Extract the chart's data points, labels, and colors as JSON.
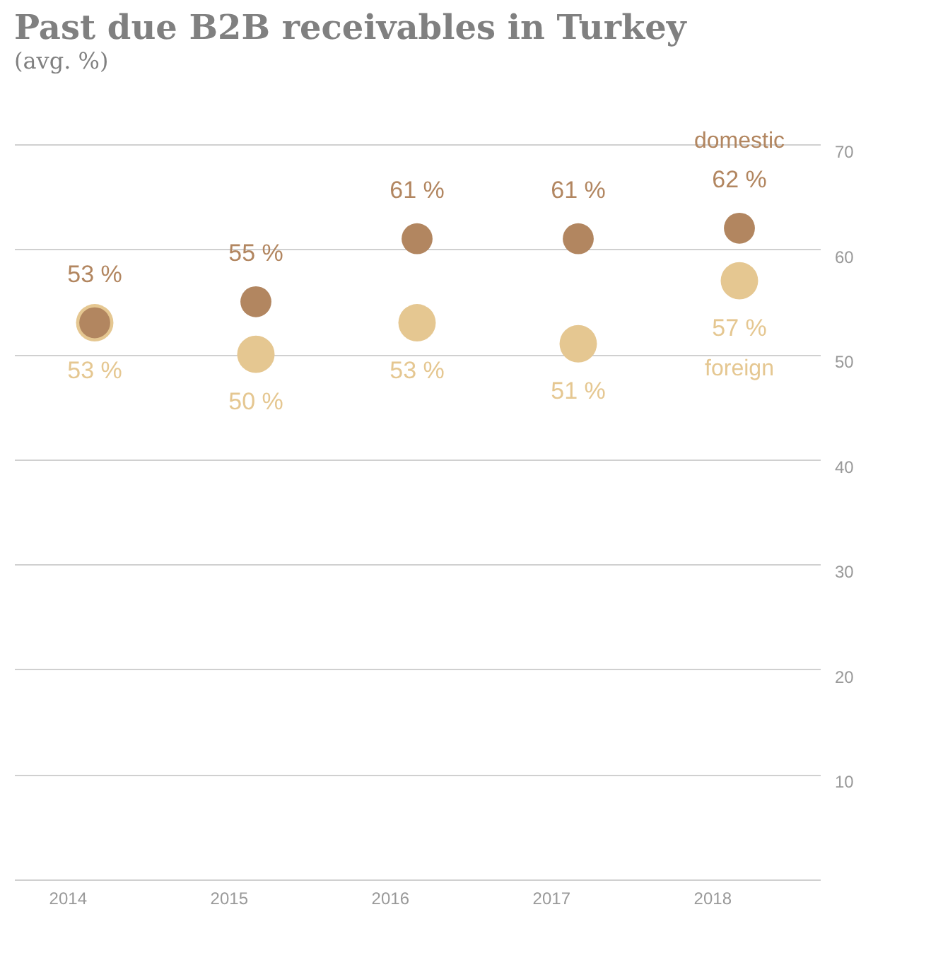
{
  "chart_data": {
    "type": "scatter",
    "title": "Past due B2B receivables in Turkey",
    "subtitle": "(avg. %)",
    "categories": [
      "2014",
      "2015",
      "2016",
      "2017",
      "2018"
    ],
    "series": [
      {
        "name": "domestic",
        "color": "#b28660",
        "values": [
          53,
          55,
          61,
          61,
          62
        ],
        "value_labels": [
          "53 %",
          "55 %",
          "61 %",
          "61 %",
          "62 %"
        ]
      },
      {
        "name": "foreign",
        "color": "#e5c791",
        "values": [
          53,
          50,
          53,
          51,
          57
        ],
        "value_labels": [
          "53 %",
          "50 %",
          "53 %",
          "51 %",
          "57 %"
        ]
      }
    ],
    "ylim": [
      0,
      70
    ],
    "yticks": [
      {
        "value": 0,
        "label": null
      },
      10,
      20,
      30,
      40,
      50,
      60,
      70
    ],
    "grid": "y",
    "legend": false,
    "marker": "circle"
  }
}
